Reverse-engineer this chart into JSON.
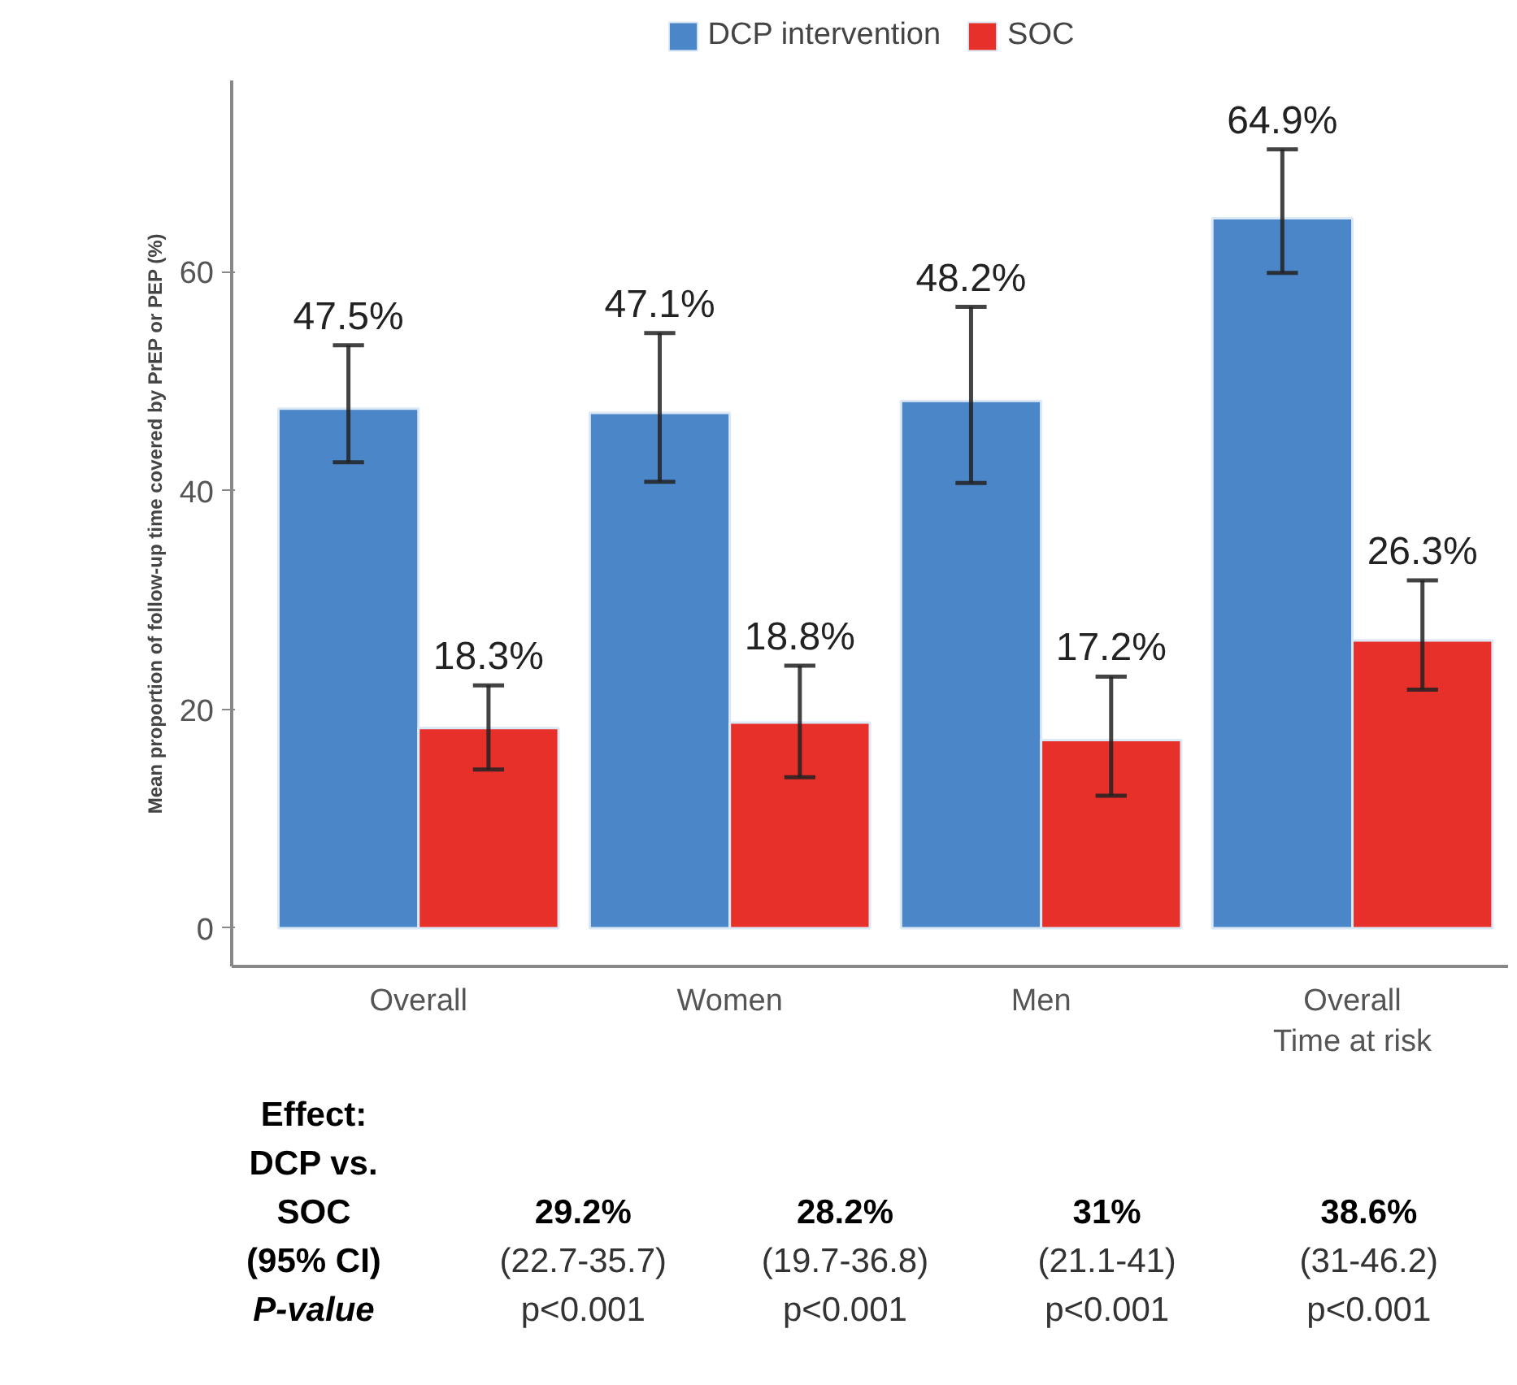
{
  "chart_data": {
    "type": "bar",
    "ylabel": "Mean proportion of follow-up time covered by PrEP or PEP (%)",
    "categories": [
      "Overall",
      "Women",
      "Men",
      "Overall\nTime at risk"
    ],
    "series": [
      {
        "name": "DCP intervention",
        "color": "#4a86c8",
        "values": [
          47.5,
          47.1,
          48.2,
          64.9
        ],
        "errors": [
          [
            42.6,
            53.3
          ],
          [
            40.8,
            54.4
          ],
          [
            40.7,
            56.8
          ],
          [
            59.9,
            71.2
          ]
        ],
        "value_labels": [
          "47.5%",
          "47.1%",
          "48.2%",
          "64.9%"
        ]
      },
      {
        "name": "SOC",
        "color": "#e8302a",
        "values": [
          18.3,
          18.8,
          17.2,
          26.3
        ],
        "errors": [
          [
            14.5,
            22.2
          ],
          [
            13.8,
            24.0
          ],
          [
            12.1,
            23.0
          ],
          [
            21.8,
            31.8
          ]
        ],
        "value_labels": [
          "18.3%",
          "18.8%",
          "17.2%",
          "26.3%"
        ]
      }
    ],
    "ylim": [
      -3.5,
      77.5
    ],
    "yticks": [
      0,
      20,
      40,
      60
    ],
    "grid": false,
    "legend": "top",
    "annotations": [
      "Effect:\nDCP vs.\nSOC\n(95% CI)\nP-value",
      "29.2%\n(22.7-35.7)\np<0.001",
      "28.2%\n(19.7-36.8)\np<0.001",
      "31%\n(21.1-41)\np<0.001",
      "38.6%\n(31-46.2)\np<0.001"
    ]
  }
}
